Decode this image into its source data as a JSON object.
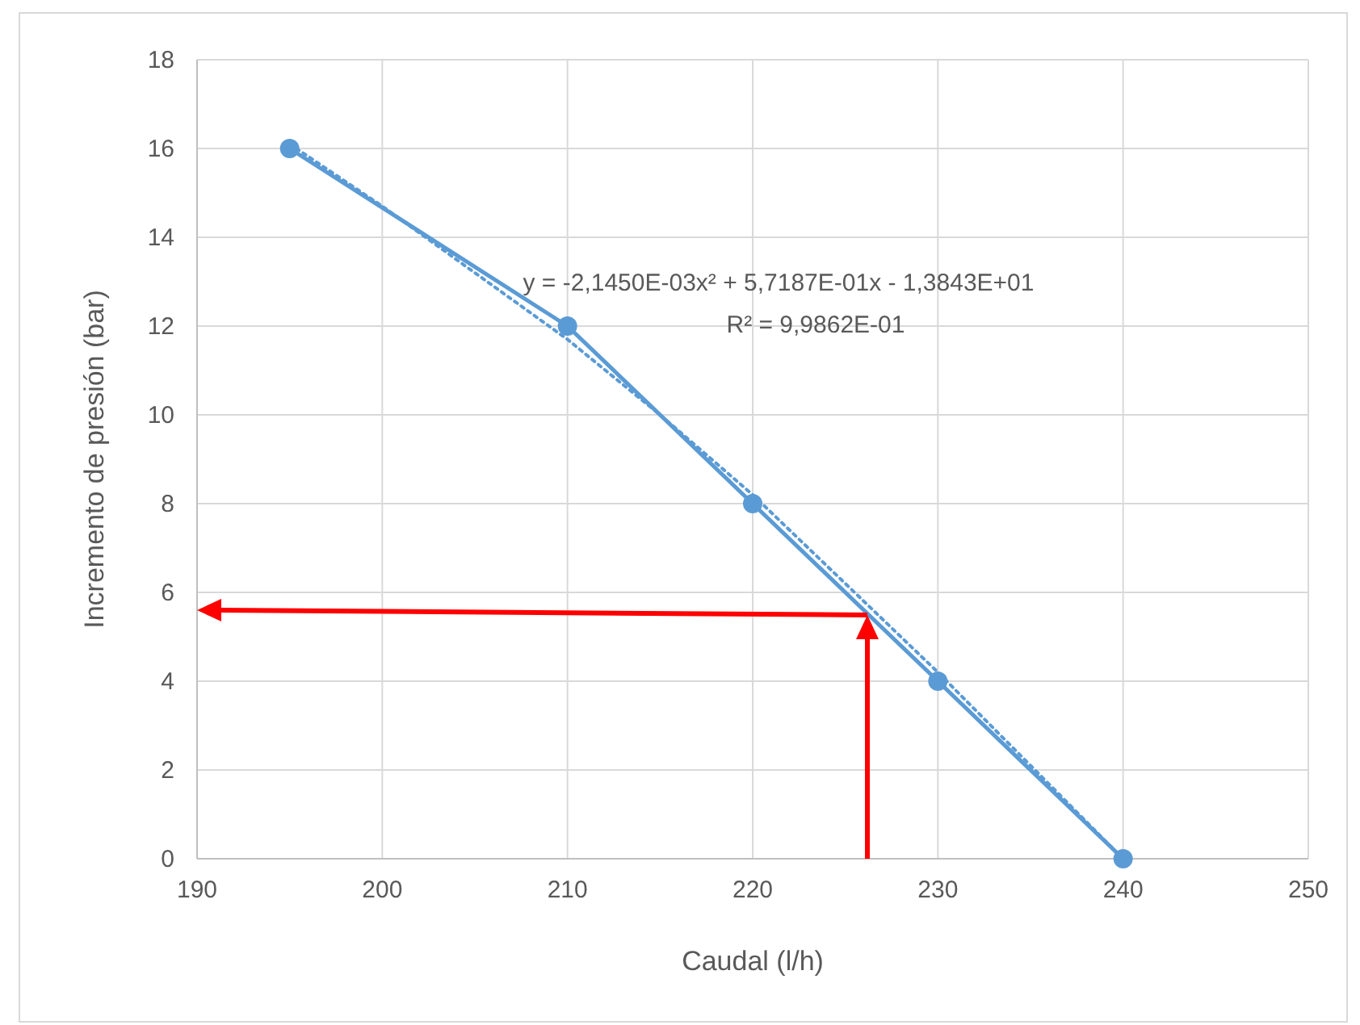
{
  "chart_data": {
    "type": "line",
    "xlabel": "Caudal (l/h)",
    "ylabel": "Incremento de presión (bar)",
    "xlim": [
      190,
      250
    ],
    "xticks": [
      190,
      200,
      210,
      220,
      230,
      240,
      250
    ],
    "ylim": [
      0,
      18
    ],
    "yticks": [
      0,
      2,
      4,
      6,
      8,
      10,
      12,
      14,
      16,
      18
    ],
    "grid": true,
    "legend": false,
    "series": [
      {
        "color": "#5b9bd5",
        "marker": "circle",
        "line_style": "solid",
        "x": [
          195,
          210,
          220,
          230,
          240
        ],
        "values": [
          16,
          12,
          8,
          4,
          0
        ]
      },
      {
        "color": "#5b9bd5",
        "marker": "none",
        "line_style": "dotted",
        "x": [
          195,
          200,
          205,
          210,
          215,
          220,
          225,
          230,
          235,
          240
        ],
        "values": [
          16.1,
          14.7,
          13.2,
          11.7,
          10.0,
          8.2,
          6.2,
          4.2,
          2.1,
          0
        ]
      }
    ],
    "annotations": [
      "y = -2,1450E-03x² + 5,7187E-01x - 1,3843E+01",
      "R² = 9,9862E-01"
    ]
  }
}
